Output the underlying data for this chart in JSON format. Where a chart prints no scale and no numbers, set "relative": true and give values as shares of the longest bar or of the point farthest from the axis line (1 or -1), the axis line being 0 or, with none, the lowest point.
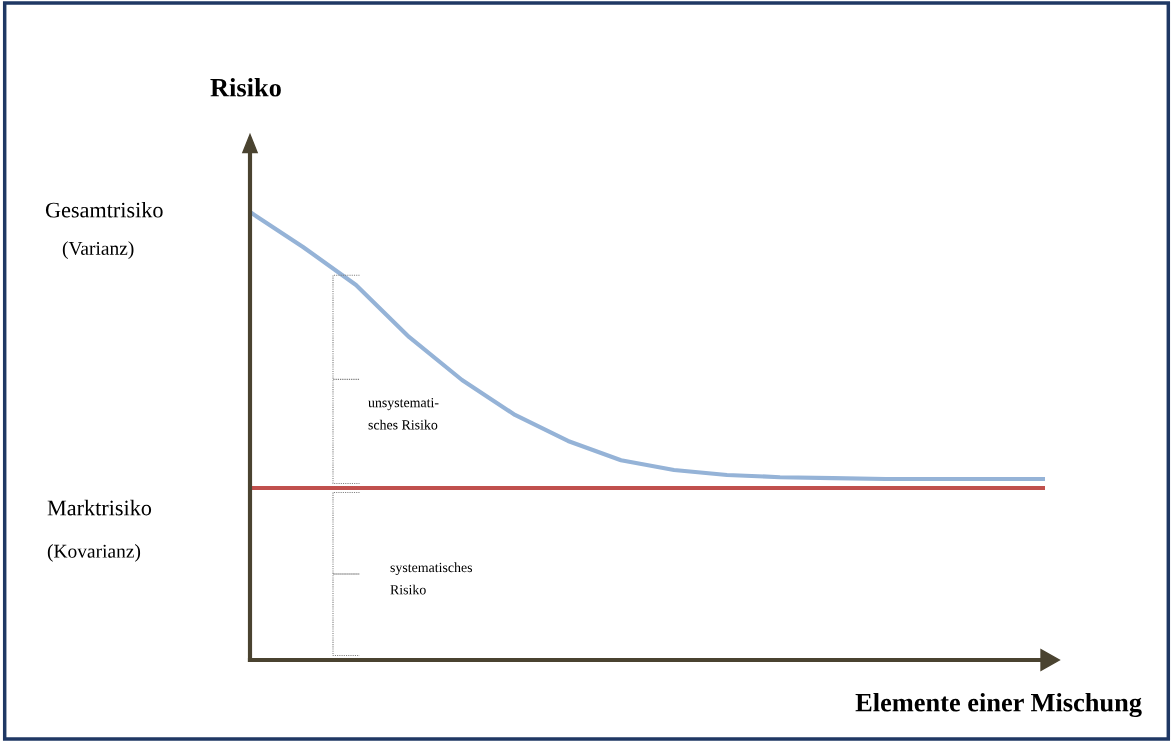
{
  "chart_data": {
    "type": "line",
    "relative": true,
    "ylabel": "Risiko",
    "xlabel": "Elemente einer Mischung",
    "categories": [
      null,
      null,
      null,
      null,
      null,
      null,
      null,
      null,
      null,
      null,
      null,
      null,
      null,
      null,
      null,
      null
    ],
    "series": [
      {
        "color": "#95b3d7",
        "values": [
          1,
          0.922,
          0.837,
          0.721,
          0.625,
          0.547,
          0.489,
          0.446,
          0.424,
          0.413,
          0.408,
          0.406,
          0.404,
          0.404,
          0.404,
          0.404
        ]
      },
      {
        "color": "#c0504d",
        "values": [
          0.384,
          0.384,
          0.384,
          0.384,
          0.384,
          0.384,
          0.384,
          0.384,
          0.384,
          0.384,
          0.384,
          0.384,
          0.384,
          0.384,
          0.384,
          0.384
        ]
      }
    ],
    "annotations": [
      "Gesamtrisiko",
      "(Varianz)",
      "Marktrisiko",
      "(Kovarianz)",
      "unsystemati-\nsches Risiko",
      "systematisches\nRisiko"
    ],
    "grid": false,
    "legend": false
  }
}
